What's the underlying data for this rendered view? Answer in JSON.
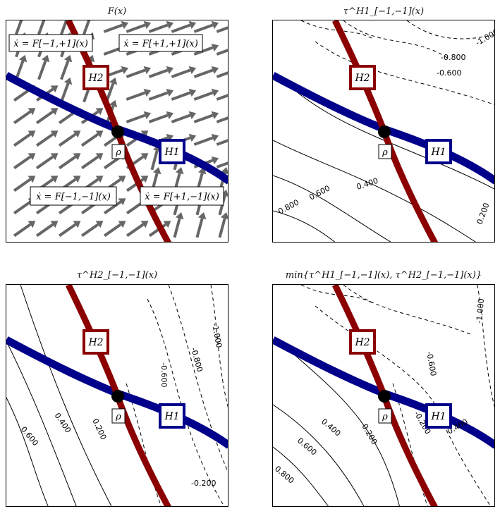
{
  "colors": {
    "H1": "#00008b",
    "H2": "#8b0000",
    "arrow": "#666666",
    "point": "#000000"
  },
  "panels": [
    {
      "title": "F(x)",
      "regions": [
        "ẋ = F[−1,+1](x)",
        "ẋ = F[+1,+1](x)",
        "ẋ = F[−1,−1](x)",
        "ẋ = F[+1,−1](x)"
      ],
      "surface_labels": {
        "H1": "H1",
        "H2": "H2",
        "rho": "ρ"
      }
    },
    {
      "title": "τ^H1_[−1,−1](x)",
      "contour_labels": [
        "-1.000",
        "-0.800",
        "-0.600",
        "0.400",
        "0.600",
        "0.800",
        "0.200"
      ],
      "surface_labels": {
        "H1": "H1",
        "H2": "H2",
        "rho": "ρ"
      }
    },
    {
      "title": "τ^H2_[−1,−1](x)",
      "contour_labels": [
        "-1.000",
        "-0.800",
        "-0.600",
        "0.600",
        "0.400",
        "0.200",
        "-0.200"
      ],
      "surface_labels": {
        "H1": "H1",
        "H2": "H2",
        "rho": "ρ"
      }
    },
    {
      "title": "min{τ^H1_[−1,−1](x), τ^H2_[−1,−1](x)}",
      "contour_labels": [
        "-1.000",
        "-0.600",
        "0.400",
        "0.600",
        "0.800",
        "0.200",
        "-0.200",
        "0.400"
      ],
      "surface_labels": {
        "H1": "H1",
        "H2": "H2",
        "rho": "ρ"
      }
    }
  ]
}
